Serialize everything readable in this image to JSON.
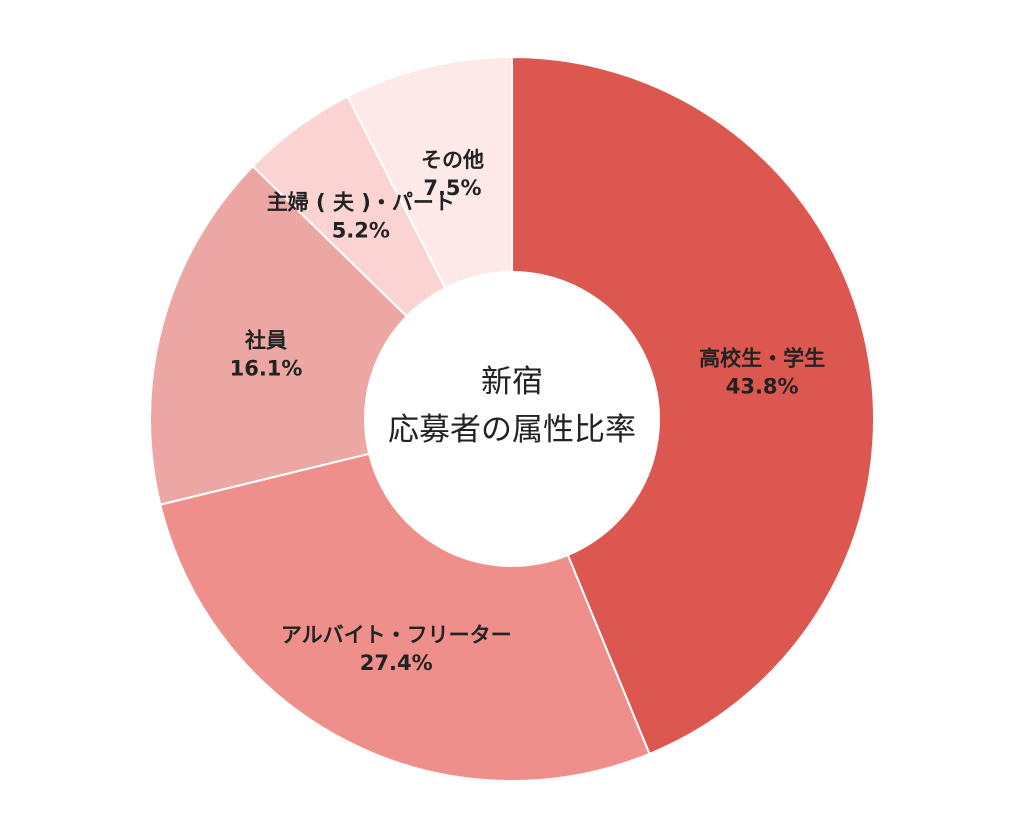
{
  "chart_data": {
    "type": "pie",
    "donut": true,
    "center_label_lines": [
      "新宿",
      "応募者の属性比率"
    ],
    "categories": [
      "高校生・学生",
      "アルバイト・フリーター",
      "社員",
      "主婦 ( 夫 )・パート",
      "その他"
    ],
    "values": [
      43.8,
      27.4,
      16.1,
      5.2,
      7.5
    ],
    "value_labels": [
      "43.8%",
      "27.4%",
      "16.1%",
      "5.2%",
      "7.5%"
    ],
    "colors": [
      "#dd5751",
      "#ee8f8b",
      "#eca7a4",
      "#fcd3d3",
      "#fee9e9"
    ],
    "start_angle_deg": 0,
    "direction": "clockwise",
    "legend": "none"
  }
}
